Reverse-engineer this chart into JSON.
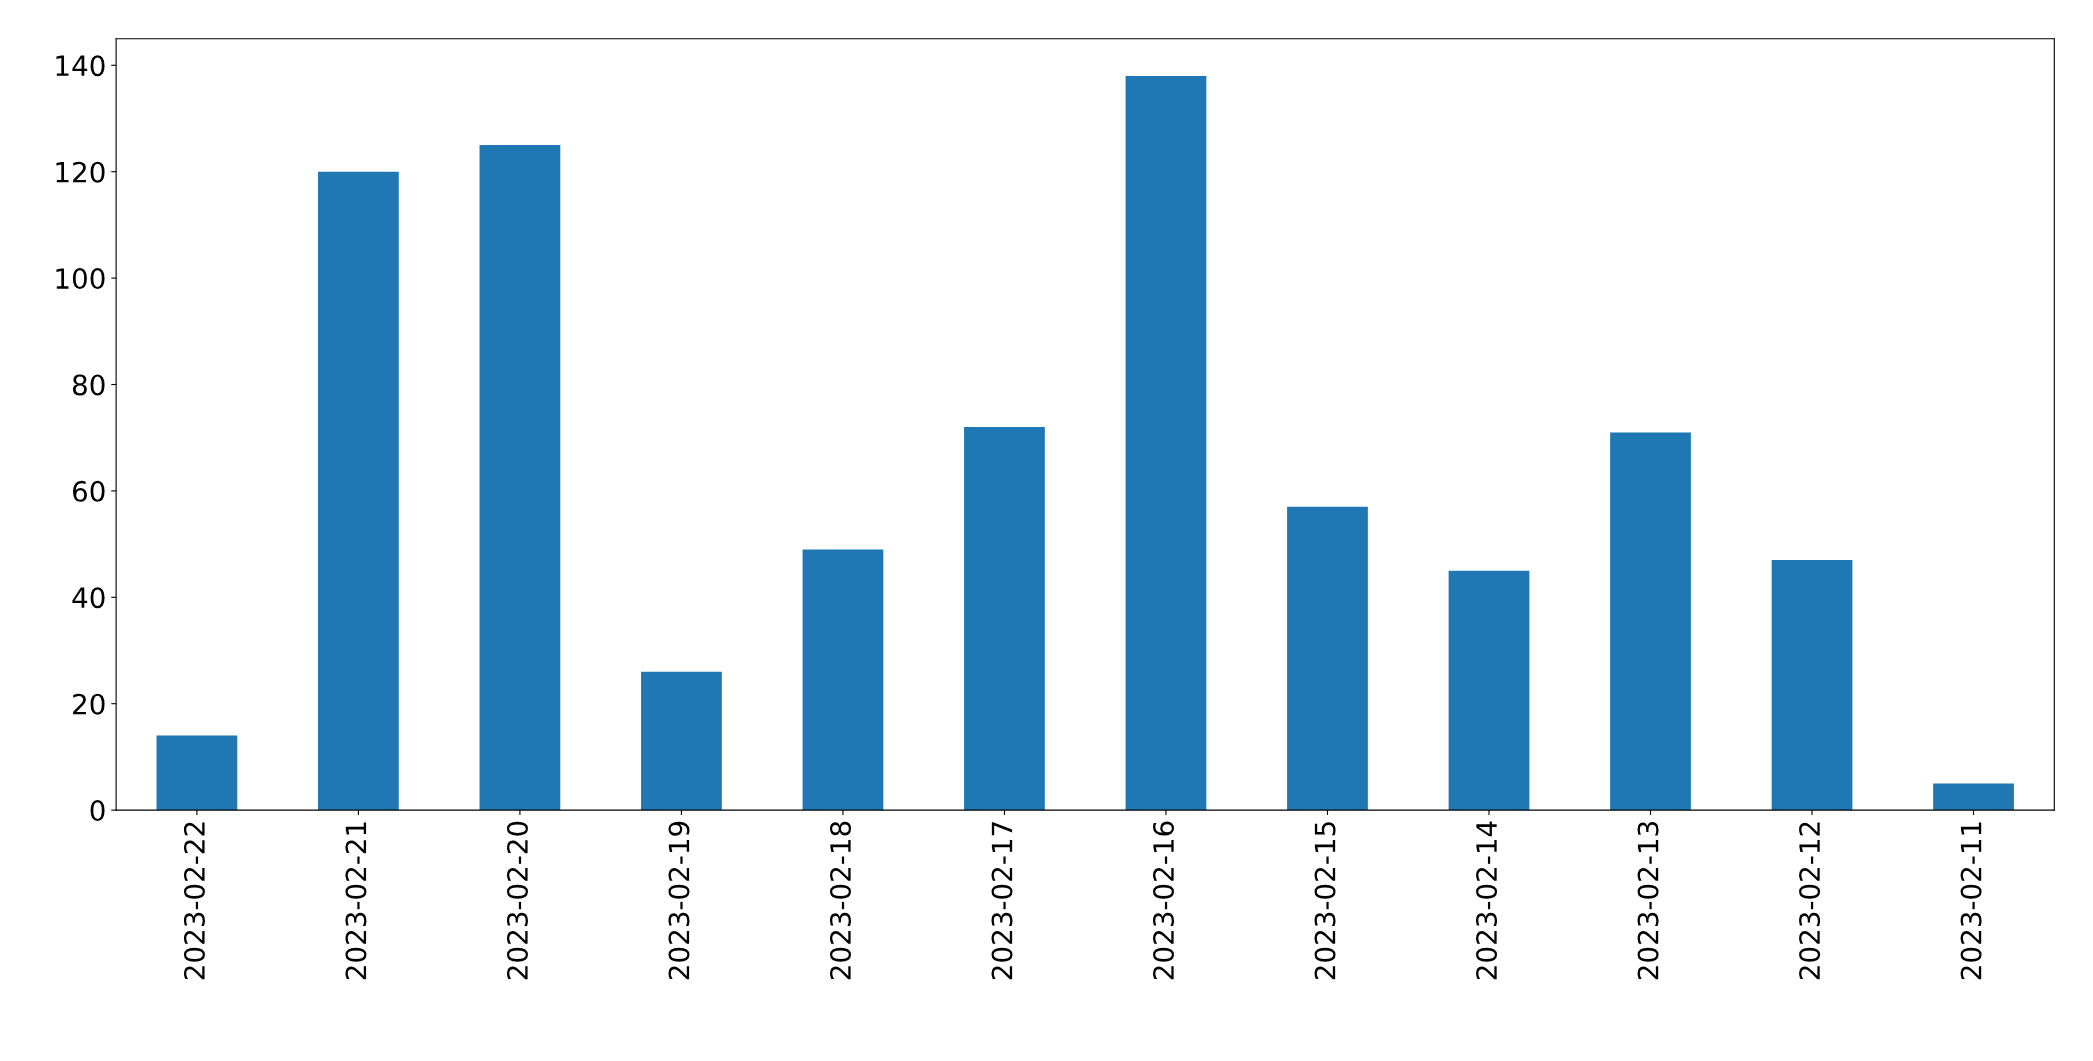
{
  "chart_data": {
    "type": "bar",
    "categories": [
      "2023-02-22",
      "2023-02-21",
      "2023-02-20",
      "2023-02-19",
      "2023-02-18",
      "2023-02-17",
      "2023-02-16",
      "2023-02-15",
      "2023-02-14",
      "2023-02-13",
      "2023-02-12",
      "2023-02-11"
    ],
    "values": [
      14,
      120,
      125,
      26,
      49,
      72,
      138,
      57,
      45,
      71,
      47,
      5
    ],
    "color": "#1f77b4",
    "ylim": [
      0,
      145
    ],
    "yticks": [
      0,
      20,
      40,
      60,
      80,
      100,
      120,
      140
    ],
    "grid": false,
    "legend": false
  }
}
